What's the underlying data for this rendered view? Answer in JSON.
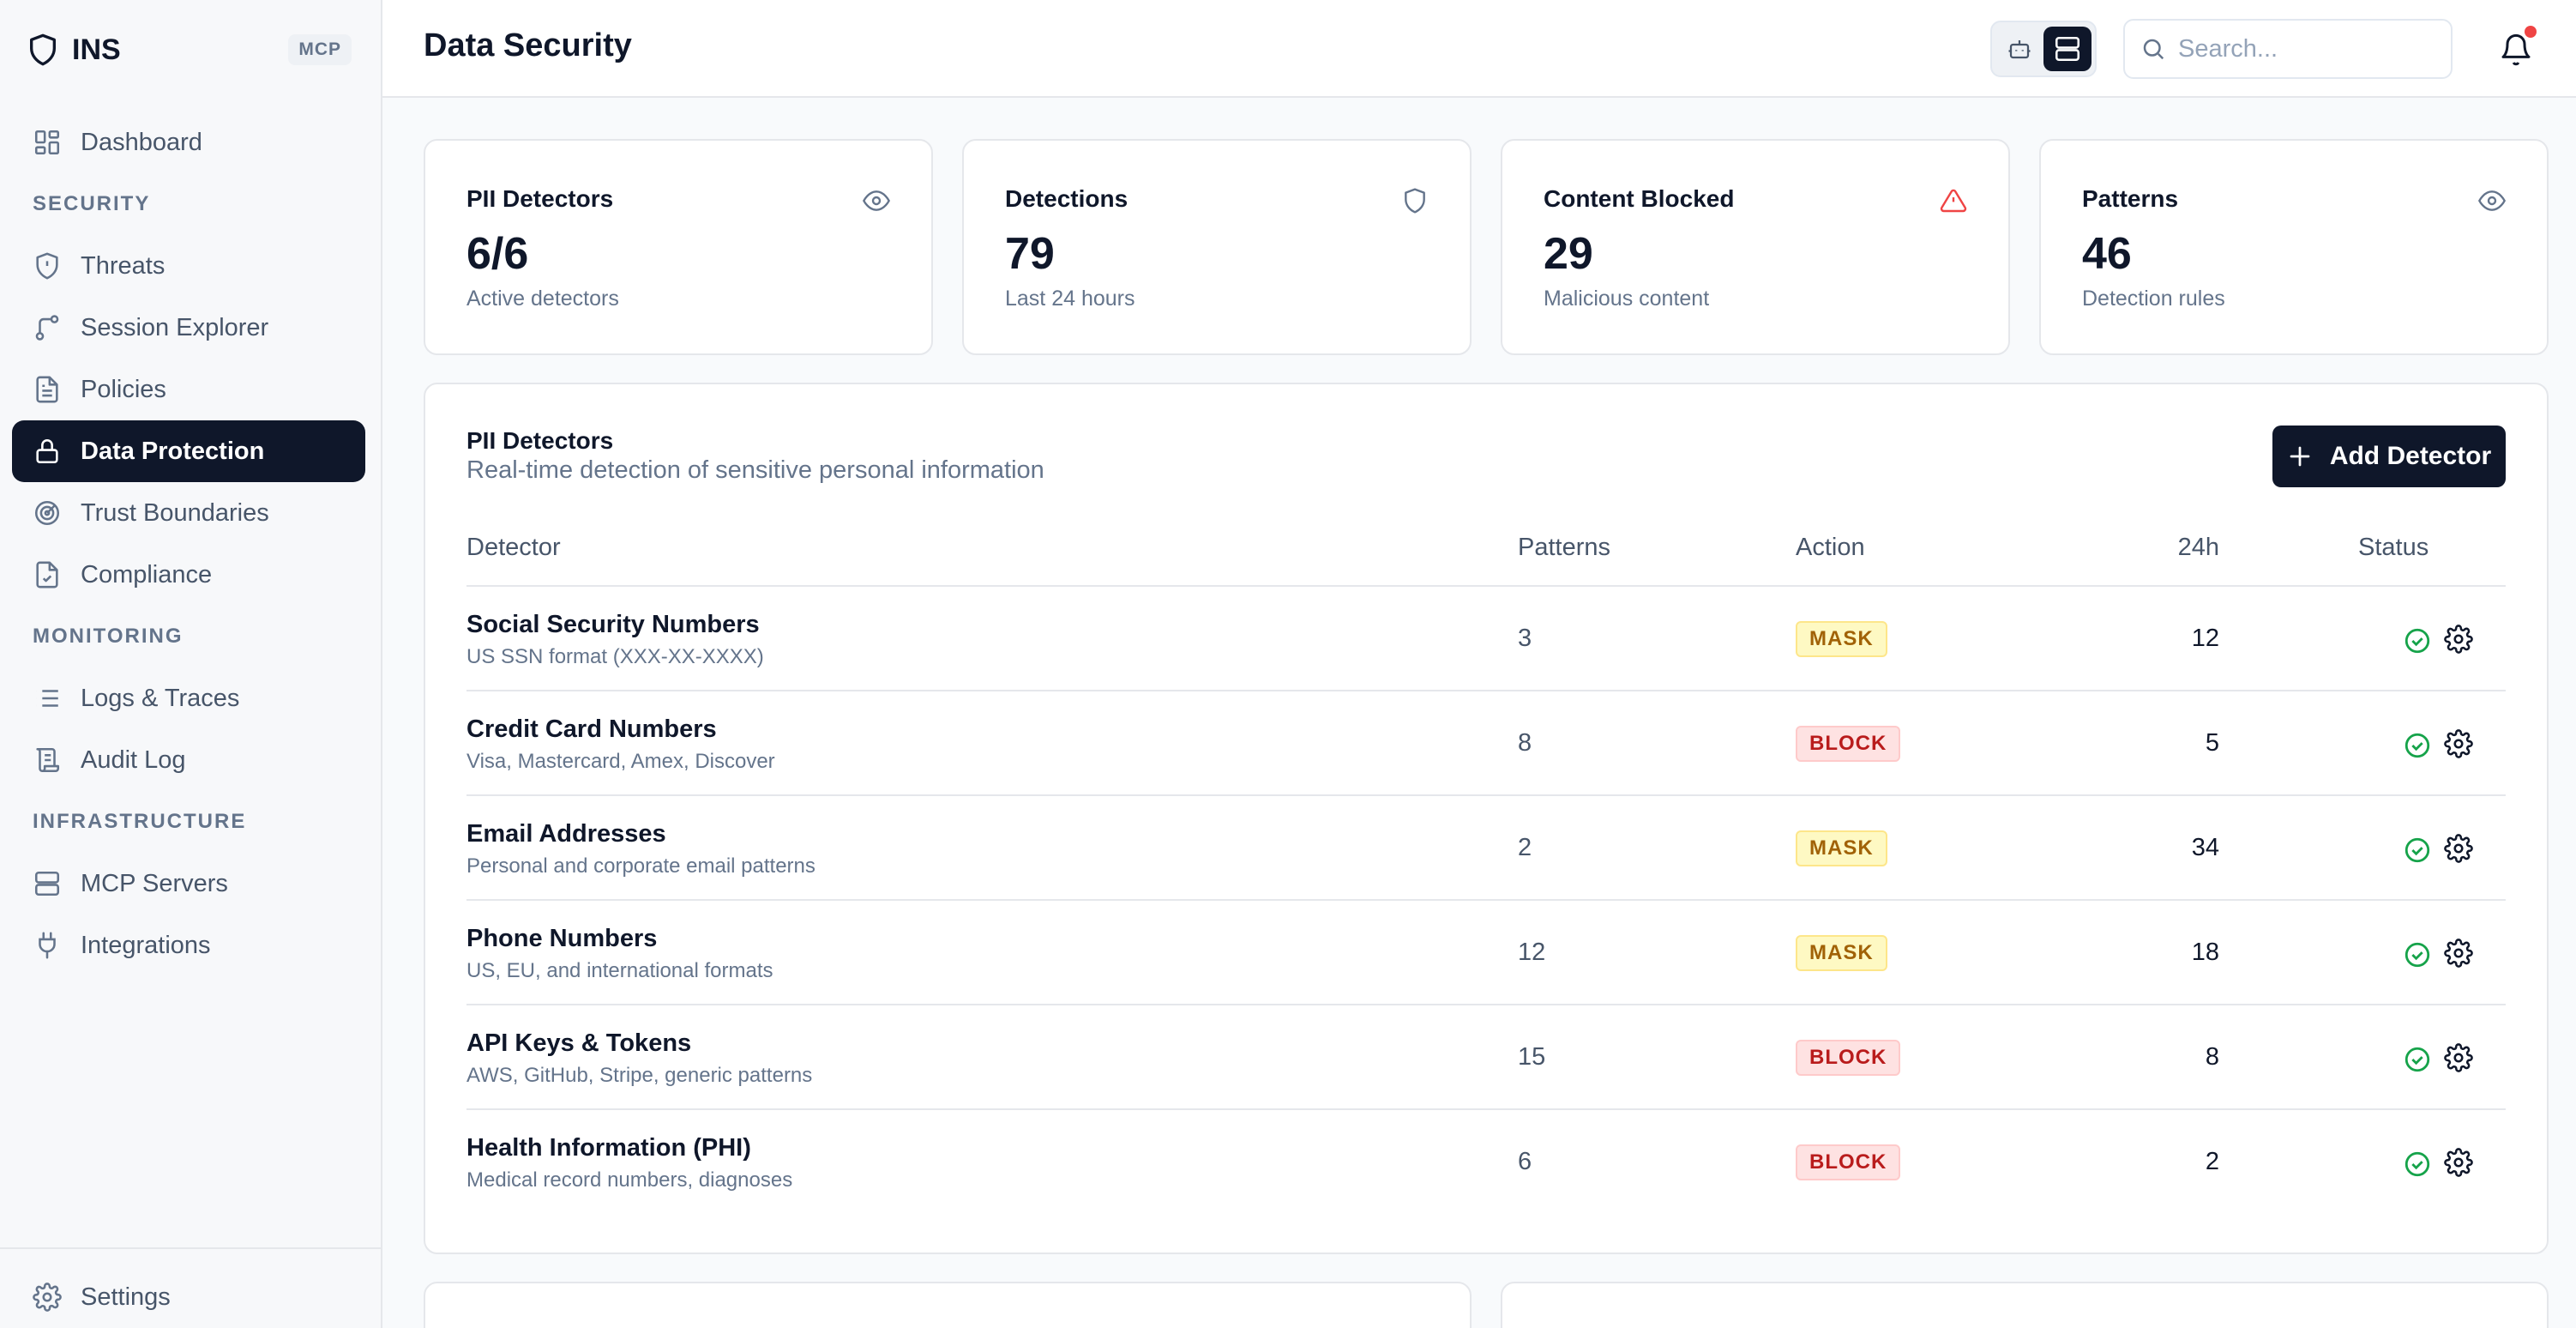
{
  "app": {
    "name": "INS",
    "tag": "MCP"
  },
  "sidebar": {
    "items": [
      {
        "label": "Dashboard",
        "icon": "dashboard-icon"
      },
      {
        "section": "SECURITY"
      },
      {
        "label": "Threats",
        "icon": "shield-alert-icon"
      },
      {
        "label": "Session Explorer",
        "icon": "git-branch-icon"
      },
      {
        "label": "Policies",
        "icon": "file-text-icon"
      },
      {
        "label": "Data Protection",
        "icon": "lock-icon",
        "active": true
      },
      {
        "label": "Trust Boundaries",
        "icon": "radar-icon"
      },
      {
        "label": "Compliance",
        "icon": "file-check-icon"
      },
      {
        "section": "MONITORING"
      },
      {
        "label": "Logs & Traces",
        "icon": "list-icon"
      },
      {
        "label": "Audit Log",
        "icon": "scroll-icon"
      },
      {
        "section": "INFRASTRUCTURE"
      },
      {
        "label": "MCP Servers",
        "icon": "server-icon"
      },
      {
        "label": "Integrations",
        "icon": "plug-icon"
      }
    ],
    "settings_label": "Settings"
  },
  "header": {
    "title": "Data Security",
    "search_placeholder": "Search..."
  },
  "stats": [
    {
      "label": "PII Detectors",
      "value": "6/6",
      "sub": "Active detectors",
      "icon": "eye-icon"
    },
    {
      "label": "Detections",
      "value": "79",
      "sub": "Last 24 hours",
      "icon": "shield-icon"
    },
    {
      "label": "Content Blocked",
      "value": "29",
      "sub": "Malicious content",
      "icon": "alert-triangle-icon"
    },
    {
      "label": "Patterns",
      "value": "46",
      "sub": "Detection rules",
      "icon": "eye-icon"
    }
  ],
  "detectors": {
    "title": "PII Detectors",
    "subtitle": "Real-time detection of sensitive personal information",
    "add_label": "Add Detector",
    "columns": [
      "Detector",
      "Patterns",
      "Action",
      "24h",
      "Status"
    ],
    "rows": [
      {
        "name": "Social Security Numbers",
        "desc": "US SSN format (XXX-XX-XXXX)",
        "patterns": "3",
        "action": "MASK",
        "count": "12"
      },
      {
        "name": "Credit Card Numbers",
        "desc": "Visa, Mastercard, Amex, Discover",
        "patterns": "8",
        "action": "BLOCK",
        "count": "5"
      },
      {
        "name": "Email Addresses",
        "desc": "Personal and corporate email patterns",
        "patterns": "2",
        "action": "MASK",
        "count": "34"
      },
      {
        "name": "Phone Numbers",
        "desc": "US, EU, and international formats",
        "patterns": "12",
        "action": "MASK",
        "count": "18"
      },
      {
        "name": "API Keys & Tokens",
        "desc": "AWS, GitHub, Stripe, generic patterns",
        "patterns": "15",
        "action": "BLOCK",
        "count": "8"
      },
      {
        "name": "Health Information (PHI)",
        "desc": "Medical record numbers, diagnoses",
        "patterns": "6",
        "action": "BLOCK",
        "count": "2"
      }
    ]
  },
  "colors": {
    "accent": "#0f172a",
    "mask_bg": "#fef9c3",
    "block_bg": "#fee2e2",
    "status_ok": "#16a34a",
    "alert": "#ef4444"
  }
}
